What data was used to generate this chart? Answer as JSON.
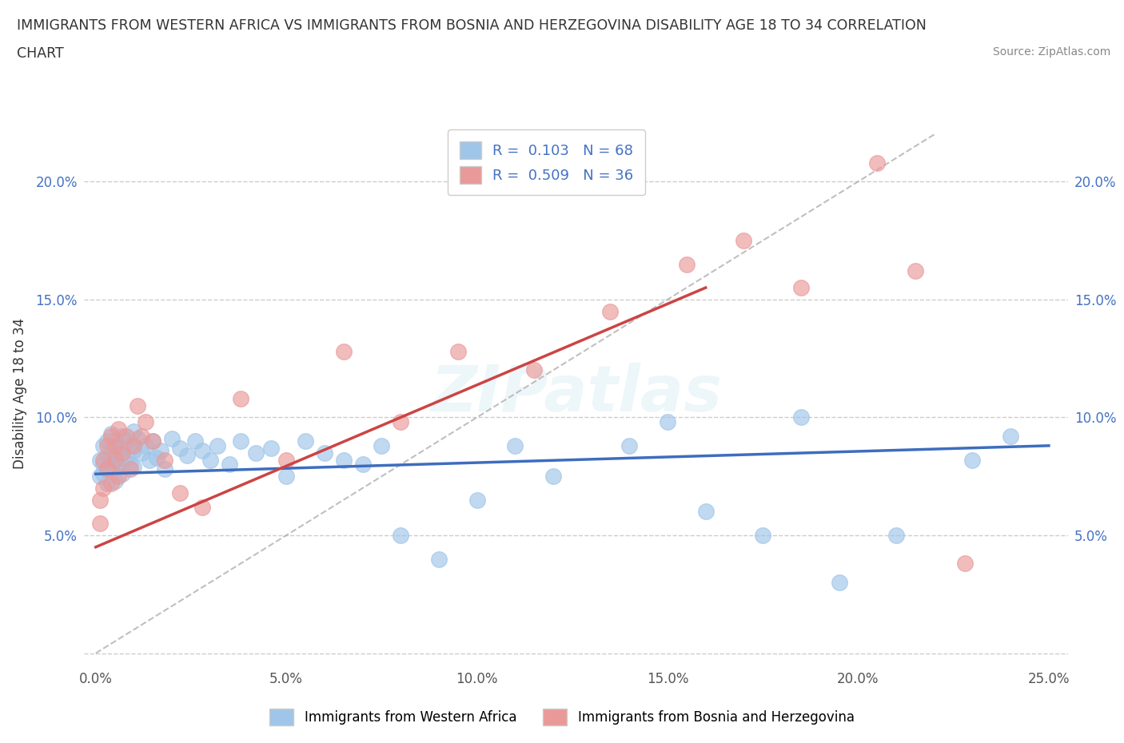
{
  "title_line1": "IMMIGRANTS FROM WESTERN AFRICA VS IMMIGRANTS FROM BOSNIA AND HERZEGOVINA DISABILITY AGE 18 TO 34 CORRELATION",
  "title_line2": "CHART",
  "source": "Source: ZipAtlas.com",
  "ylabel": "Disability Age 18 to 34",
  "xlim": [
    -0.003,
    0.255
  ],
  "ylim": [
    -0.005,
    0.225
  ],
  "xticks": [
    0.0,
    0.05,
    0.1,
    0.15,
    0.2,
    0.25
  ],
  "yticks": [
    0.0,
    0.05,
    0.1,
    0.15,
    0.2
  ],
  "xticklabels": [
    "0.0%",
    "5.0%",
    "10.0%",
    "15.0%",
    "20.0%",
    "25.0%"
  ],
  "yticklabels": [
    "",
    "5.0%",
    "10.0%",
    "15.0%",
    "20.0%"
  ],
  "blue_color": "#9fc5e8",
  "pink_color": "#ea9999",
  "blue_line_color": "#3d6dbe",
  "pink_line_color": "#cc4444",
  "ref_line_color": "#b0b0b0",
  "legend_label_blue": "Immigrants from Western Africa",
  "legend_label_pink": "Immigrants from Bosnia and Herzegovina",
  "R_blue": 0.103,
  "N_blue": 68,
  "R_pink": 0.509,
  "N_pink": 36,
  "watermark": "ZIPatlas",
  "background_color": "#ffffff",
  "grid_color": "#cccccc",
  "blue_scatter_x": [
    0.001,
    0.001,
    0.002,
    0.002,
    0.002,
    0.003,
    0.003,
    0.003,
    0.003,
    0.004,
    0.004,
    0.004,
    0.005,
    0.005,
    0.005,
    0.005,
    0.006,
    0.006,
    0.006,
    0.007,
    0.007,
    0.007,
    0.008,
    0.008,
    0.009,
    0.009,
    0.01,
    0.01,
    0.01,
    0.011,
    0.012,
    0.013,
    0.014,
    0.015,
    0.016,
    0.017,
    0.018,
    0.02,
    0.022,
    0.024,
    0.026,
    0.028,
    0.03,
    0.032,
    0.035,
    0.038,
    0.042,
    0.046,
    0.05,
    0.055,
    0.06,
    0.065,
    0.07,
    0.075,
    0.08,
    0.09,
    0.1,
    0.11,
    0.12,
    0.14,
    0.15,
    0.16,
    0.175,
    0.185,
    0.195,
    0.21,
    0.23,
    0.24
  ],
  "blue_scatter_y": [
    0.082,
    0.075,
    0.088,
    0.08,
    0.076,
    0.09,
    0.084,
    0.078,
    0.072,
    0.087,
    0.082,
    0.093,
    0.09,
    0.085,
    0.078,
    0.073,
    0.088,
    0.083,
    0.079,
    0.092,
    0.086,
    0.076,
    0.09,
    0.083,
    0.088,
    0.08,
    0.094,
    0.086,
    0.079,
    0.091,
    0.085,
    0.088,
    0.082,
    0.09,
    0.083,
    0.086,
    0.078,
    0.091,
    0.087,
    0.084,
    0.09,
    0.086,
    0.082,
    0.088,
    0.08,
    0.09,
    0.085,
    0.087,
    0.075,
    0.09,
    0.085,
    0.082,
    0.08,
    0.088,
    0.05,
    0.04,
    0.065,
    0.088,
    0.075,
    0.088,
    0.098,
    0.06,
    0.05,
    0.1,
    0.03,
    0.05,
    0.082,
    0.092
  ],
  "pink_scatter_x": [
    0.001,
    0.001,
    0.002,
    0.002,
    0.003,
    0.003,
    0.004,
    0.004,
    0.005,
    0.005,
    0.006,
    0.006,
    0.007,
    0.008,
    0.009,
    0.01,
    0.011,
    0.012,
    0.013,
    0.015,
    0.018,
    0.022,
    0.028,
    0.038,
    0.05,
    0.065,
    0.08,
    0.095,
    0.115,
    0.135,
    0.155,
    0.17,
    0.185,
    0.205,
    0.215,
    0.228
  ],
  "pink_scatter_y": [
    0.065,
    0.055,
    0.082,
    0.07,
    0.088,
    0.078,
    0.092,
    0.072,
    0.088,
    0.082,
    0.095,
    0.075,
    0.085,
    0.092,
    0.078,
    0.088,
    0.105,
    0.092,
    0.098,
    0.09,
    0.082,
    0.068,
    0.062,
    0.108,
    0.082,
    0.128,
    0.098,
    0.128,
    0.12,
    0.145,
    0.165,
    0.175,
    0.155,
    0.208,
    0.162,
    0.038
  ],
  "blue_trend_x0": 0.0,
  "blue_trend_x1": 0.25,
  "blue_trend_y0": 0.076,
  "blue_trend_y1": 0.088,
  "pink_trend_x0": 0.0,
  "pink_trend_x1": 0.16,
  "pink_trend_y0": 0.045,
  "pink_trend_y1": 0.155,
  "ref_line_x0": 0.0,
  "ref_line_x1": 0.22,
  "ref_line_y0": 0.0,
  "ref_line_y1": 0.22
}
